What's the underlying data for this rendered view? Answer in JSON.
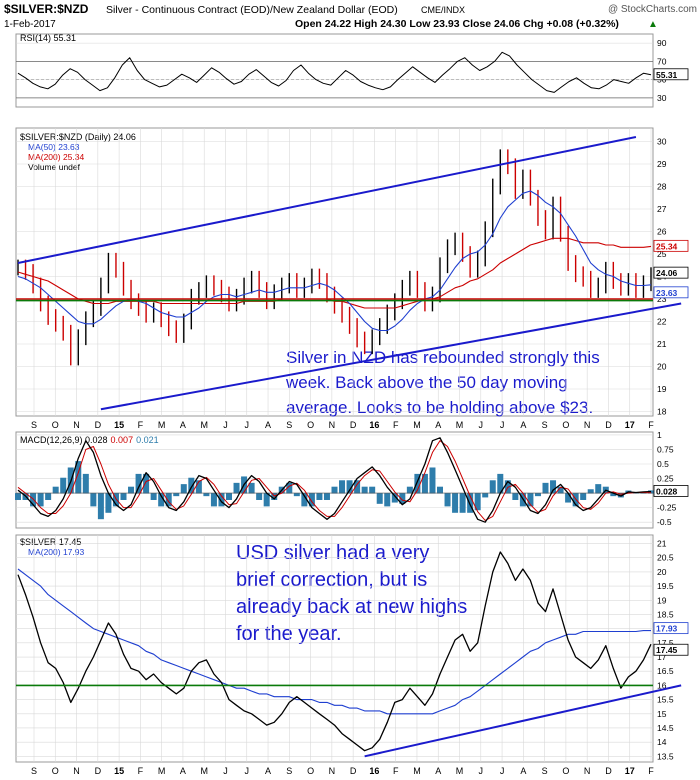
{
  "header": {
    "symbol": "$SILVER:$NZD",
    "description": "Silver - Continuous Contract (EOD)/New Zealand Dollar (EOD)",
    "exchange": "CME/INDX",
    "watermark": "@ StockCharts.com",
    "date": "1-Feb-2017",
    "quote": "Open 24.22  High 24.30  Low 23.93  Close 24.06  Chg +0.08 (+0.32%)",
    "quote_arrow": "▲"
  },
  "colors": {
    "price": "#000000",
    "up_bar": "#000000",
    "down_bar": "#cc0000",
    "ma50": "#1f3fd0",
    "ma200": "#cc0000",
    "trendline": "#1a1acc",
    "support": "#0a7a0a",
    "resistance": "#cc0000",
    "annotation": "#1a1acc",
    "histogram": "#2e7dab",
    "macd_signal": "#cc0000",
    "grid": "#d9d9d9"
  },
  "chart_data": [
    {
      "id": "rsi",
      "type": "line",
      "legend": "RSI(14) 55.31",
      "last_label": "55.31",
      "y_ticks": [
        30,
        50,
        70,
        90
      ],
      "ylim": [
        20,
        100
      ],
      "ref_lines": [
        30,
        70
      ],
      "values": [
        57,
        52,
        46,
        42,
        40,
        45,
        55,
        62,
        58,
        50,
        44,
        38,
        41,
        52,
        66,
        74,
        60,
        50,
        46,
        42,
        44,
        50,
        56,
        52,
        47,
        55,
        63,
        58,
        51,
        45,
        48,
        56,
        61,
        54,
        47,
        43,
        49,
        60,
        66,
        57,
        50,
        46,
        44,
        52,
        60,
        55,
        48,
        44,
        41,
        39,
        42,
        50,
        57,
        64,
        58,
        52,
        47,
        55,
        62,
        70,
        74,
        66,
        60,
        64,
        70,
        80,
        76,
        66,
        58,
        50,
        44,
        38,
        36,
        42,
        48,
        52,
        46,
        41,
        40,
        44,
        50,
        48,
        46,
        52,
        57,
        55.31
      ]
    },
    {
      "id": "price_nzd",
      "type": "bar",
      "legend": [
        "$SILVER:$NZD (Daily) 24.06",
        "MA(50) 23.63",
        "MA(200) 25.34",
        "Volume undef"
      ],
      "last_labels": [
        "24.06",
        "23.63",
        "25.34"
      ],
      "y_ticks": [
        18,
        19,
        20,
        21,
        22,
        23,
        24,
        25,
        26,
        27,
        28,
        29,
        30
      ],
      "ylim": [
        17.8,
        30.6
      ],
      "x_labels": [
        "S",
        "O",
        "N",
        "D",
        "15",
        "F",
        "M",
        "A",
        "M",
        "J",
        "J",
        "A",
        "S",
        "O",
        "N",
        "D",
        "16",
        "F",
        "M",
        "A",
        "M",
        "J",
        "J",
        "A",
        "S",
        "O",
        "N",
        "D",
        "17",
        "F"
      ],
      "close": [
        24.4,
        24.2,
        23.6,
        22.8,
        22.2,
        21.9,
        21.5,
        20.4,
        21.3,
        22.1,
        22.6,
        23.6,
        24.7,
        24.3,
        23.5,
        22.9,
        22.6,
        22.3,
        22.5,
        22.1,
        21.7,
        21.4,
        22.0,
        23.1,
        23.4,
        23.7,
        23.5,
        23.2,
        22.8,
        23.1,
        23.6,
        23.9,
        23.4,
        22.9,
        23.3,
        23.6,
        23.8,
        23.4,
        23.6,
        24.0,
        23.8,
        23.2,
        22.7,
        22.3,
        21.8,
        21.2,
        20.9,
        21.3,
        21.8,
        22.4,
        22.9,
        23.5,
        23.9,
        23.4,
        22.8,
        23.2,
        24.5,
        25.3,
        25.6,
        25.0,
        24.3,
        24.8,
        26.1,
        28.0,
        29.3,
        28.9,
        27.8,
        28.4,
        27.5,
        26.6,
        26.0,
        27.2,
        25.9,
        24.6,
        24.1,
        23.9,
        23.4,
        23.6,
        24.3,
        23.8,
        23.5,
        23.8,
        23.4,
        23.7,
        24.06
      ],
      "ma50": [
        24.0,
        23.9,
        23.7,
        23.5,
        23.2,
        22.9,
        22.6,
        22.3,
        22.0,
        21.9,
        21.9,
        22.1,
        22.4,
        22.7,
        22.9,
        23.0,
        22.9,
        22.8,
        22.6,
        22.4,
        22.3,
        22.2,
        22.2,
        22.4,
        22.6,
        22.9,
        23.1,
        23.2,
        23.2,
        23.1,
        23.2,
        23.3,
        23.4,
        23.3,
        23.3,
        23.4,
        23.5,
        23.5,
        23.5,
        23.6,
        23.7,
        23.6,
        23.4,
        23.1,
        22.8,
        22.4,
        22.0,
        21.7,
        21.6,
        21.6,
        21.8,
        22.1,
        22.5,
        22.8,
        23.0,
        23.1,
        23.4,
        23.9,
        24.4,
        24.8,
        25.0,
        25.1,
        25.4,
        25.9,
        26.6,
        27.1,
        27.4,
        27.7,
        27.8,
        27.6,
        27.3,
        27.1,
        26.8,
        26.3,
        25.8,
        25.2,
        24.6,
        24.3,
        24.1,
        24.0,
        23.8,
        23.7,
        23.6,
        23.6,
        23.63
      ],
      "ma200": [
        24.2,
        24.1,
        24.0,
        23.9,
        23.8,
        23.6,
        23.4,
        23.2,
        23.0,
        22.9,
        22.8,
        22.8,
        22.8,
        22.9,
        22.9,
        22.9,
        22.9,
        22.9,
        22.9,
        22.8,
        22.8,
        22.8,
        22.8,
        22.8,
        22.8,
        22.8,
        22.8,
        22.8,
        22.8,
        22.8,
        22.9,
        22.9,
        22.9,
        22.9,
        22.9,
        23.0,
        23.0,
        23.0,
        23.0,
        23.0,
        23.0,
        23.0,
        22.9,
        22.9,
        22.8,
        22.7,
        22.6,
        22.6,
        22.6,
        22.6,
        22.6,
        22.7,
        22.8,
        22.9,
        23.0,
        23.0,
        23.1,
        23.3,
        23.5,
        23.6,
        23.8,
        23.9,
        24.1,
        24.3,
        24.6,
        24.8,
        25.0,
        25.2,
        25.4,
        25.5,
        25.6,
        25.7,
        25.7,
        25.7,
        25.6,
        25.5,
        25.5,
        25.5,
        25.4,
        25.4,
        25.3,
        25.3,
        25.3,
        25.3,
        25.34
      ],
      "trendlines": [
        {
          "from": [
            0,
            24.6
          ],
          "to": [
            82,
            30.2
          ]
        },
        {
          "from": [
            11,
            18.1
          ],
          "to": [
            88,
            22.8
          ]
        }
      ],
      "hlines": [
        {
          "value": 23.0,
          "role": "resistance"
        },
        {
          "value": 22.93,
          "role": "support"
        }
      ],
      "annotation": [
        "Silver in NZD has rebounded strongly this",
        "week. Back above the 50 day moving",
        "average. Looks to be holding above $23."
      ]
    },
    {
      "id": "macd",
      "type": "line",
      "legend": [
        "MACD(12,26,9) 0.028",
        "0.007",
        "0.021"
      ],
      "last_label": "0.028",
      "y_ticks": [
        -0.5,
        -0.25,
        0.0,
        0.25,
        0.5,
        0.75,
        1.0
      ],
      "ylim": [
        -0.6,
        1.05
      ],
      "macd": [
        0.05,
        -0.05,
        -0.2,
        -0.35,
        -0.4,
        -0.3,
        -0.1,
        0.2,
        0.6,
        0.9,
        0.7,
        0.3,
        0.0,
        -0.2,
        -0.3,
        -0.2,
        0.1,
        0.35,
        0.2,
        -0.05,
        -0.25,
        -0.3,
        -0.15,
        0.1,
        0.3,
        0.25,
        0.05,
        -0.15,
        -0.25,
        -0.1,
        0.15,
        0.3,
        0.2,
        0.0,
        -0.1,
        0.05,
        0.2,
        0.15,
        -0.05,
        -0.25,
        -0.35,
        -0.45,
        -0.35,
        -0.15,
        0.05,
        0.25,
        0.35,
        0.45,
        0.3,
        0.1,
        -0.05,
        -0.2,
        -0.1,
        0.2,
        0.5,
        0.9,
        0.95,
        0.7,
        0.4,
        0.1,
        -0.2,
        -0.45,
        -0.5,
        -0.3,
        0.0,
        0.2,
        0.1,
        -0.1,
        -0.3,
        -0.35,
        -0.2,
        0.05,
        0.15,
        0.0,
        -0.2,
        -0.3,
        -0.25,
        -0.1,
        0.05,
        0.0,
        -0.05,
        0.02,
        0.01,
        0.02,
        0.028
      ],
      "signal": [
        0.1,
        0.0,
        -0.1,
        -0.25,
        -0.35,
        -0.35,
        -0.22,
        0.0,
        0.35,
        0.75,
        0.8,
        0.5,
        0.15,
        -0.1,
        -0.25,
        -0.25,
        -0.05,
        0.2,
        0.25,
        0.05,
        -0.15,
        -0.28,
        -0.22,
        -0.02,
        0.2,
        0.27,
        0.15,
        -0.05,
        -0.2,
        -0.18,
        0.02,
        0.22,
        0.25,
        0.1,
        -0.05,
        0.0,
        0.12,
        0.17,
        0.05,
        -0.15,
        -0.3,
        -0.4,
        -0.4,
        -0.25,
        -0.05,
        0.15,
        0.3,
        0.4,
        0.38,
        0.2,
        0.02,
        -0.12,
        -0.15,
        0.05,
        0.35,
        0.7,
        0.9,
        0.8,
        0.55,
        0.25,
        -0.05,
        -0.32,
        -0.47,
        -0.4,
        -0.15,
        0.1,
        0.15,
        0.0,
        -0.2,
        -0.33,
        -0.28,
        -0.05,
        0.1,
        0.07,
        -0.1,
        -0.25,
        -0.28,
        -0.17,
        0.0,
        0.02,
        -0.02,
        0.0,
        0.01,
        0.01,
        0.007
      ]
    },
    {
      "id": "silver_usd",
      "type": "line",
      "legend": [
        "$SILVER 17.45",
        "MA(200) 17.93"
      ],
      "last_labels": [
        "17.93",
        "17.45"
      ],
      "y_ticks": [
        13.5,
        14.0,
        14.5,
        15.0,
        15.5,
        16.0,
        16.5,
        17.0,
        17.5,
        18.0,
        18.5,
        19.0,
        19.5,
        20.0,
        20.5,
        21.0
      ],
      "ylim": [
        13.3,
        21.3
      ],
      "x_labels": [
        "S",
        "O",
        "N",
        "D",
        "15",
        "F",
        "M",
        "A",
        "M",
        "J",
        "J",
        "A",
        "S",
        "O",
        "N",
        "D",
        "16",
        "F",
        "M",
        "A",
        "M",
        "J",
        "J",
        "A",
        "S",
        "O",
        "N",
        "D",
        "17",
        "F"
      ],
      "close": [
        19.9,
        19.2,
        18.4,
        17.5,
        16.8,
        16.6,
        16.1,
        15.4,
        15.9,
        16.5,
        17.0,
        17.6,
        18.2,
        17.8,
        17.1,
        16.6,
        16.5,
        16.2,
        16.4,
        16.1,
        15.9,
        15.7,
        15.9,
        16.5,
        16.8,
        16.9,
        16.4,
        16.1,
        15.5,
        15.3,
        15.1,
        15.0,
        14.8,
        14.6,
        14.7,
        15.0,
        15.4,
        15.6,
        15.4,
        15.2,
        15.0,
        14.8,
        14.6,
        14.3,
        14.1,
        13.9,
        13.7,
        13.8,
        14.1,
        14.7,
        15.4,
        15.5,
        15.9,
        15.6,
        15.3,
        15.7,
        16.4,
        17.0,
        17.6,
        17.8,
        17.2,
        17.5,
        18.8,
        20.0,
        20.7,
        20.3,
        19.7,
        20.1,
        19.7,
        18.9,
        18.6,
        19.4,
        18.5,
        17.6,
        17.0,
        16.8,
        16.6,
        16.9,
        17.4,
        16.6,
        15.9,
        16.3,
        16.5,
        16.9,
        17.45
      ],
      "ma200": [
        20.1,
        19.9,
        19.7,
        19.5,
        19.2,
        19.0,
        18.8,
        18.6,
        18.4,
        18.2,
        18.0,
        17.9,
        17.8,
        17.7,
        17.6,
        17.5,
        17.4,
        17.2,
        17.1,
        16.9,
        16.8,
        16.7,
        16.6,
        16.5,
        16.4,
        16.3,
        16.2,
        16.1,
        16.0,
        15.9,
        15.9,
        15.8,
        15.7,
        15.7,
        15.6,
        15.6,
        15.6,
        15.5,
        15.5,
        15.5,
        15.4,
        15.4,
        15.3,
        15.3,
        15.2,
        15.2,
        15.1,
        15.1,
        15.1,
        15.0,
        15.0,
        15.0,
        15.0,
        15.0,
        15.0,
        15.0,
        15.1,
        15.2,
        15.3,
        15.5,
        15.6,
        15.8,
        16.0,
        16.2,
        16.4,
        16.6,
        16.8,
        17.0,
        17.2,
        17.3,
        17.5,
        17.6,
        17.7,
        17.8,
        17.8,
        17.9,
        17.9,
        17.9,
        17.9,
        17.9,
        17.9,
        17.9,
        17.9,
        17.93,
        17.93
      ],
      "trendlines": [
        {
          "from": [
            46,
            13.5
          ],
          "to": [
            88,
            16.0
          ]
        }
      ],
      "hlines": [
        {
          "value": 16.0,
          "role": "support"
        }
      ],
      "annotation": [
        "USD silver had a very",
        "brief correction, but is",
        "already back at new highs",
        "for the year."
      ]
    }
  ]
}
